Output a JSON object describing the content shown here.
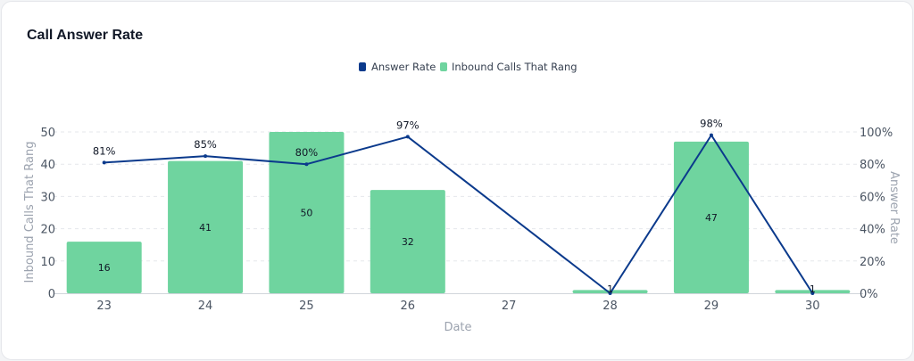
{
  "chart_data": {
    "type": "bar",
    "title": "Call Answer Rate",
    "xlabel": "Date",
    "ylabel": "Inbound Calls That Rang",
    "y2label": "Answer Rate",
    "categories": [
      "23",
      "24",
      "25",
      "26",
      "27",
      "28",
      "29",
      "30"
    ],
    "ylim": [
      0,
      50
    ],
    "y2lim": [
      0,
      100
    ],
    "yticks": [
      "0",
      "10",
      "20",
      "30",
      "40",
      "50"
    ],
    "y2ticks": [
      "0%",
      "20%",
      "40%",
      "60%",
      "80%",
      "100%"
    ],
    "legend_position": "top-center",
    "grid": true,
    "series": [
      {
        "name": "Answer Rate",
        "type": "line",
        "axis": "right",
        "color": "#0b3a8c",
        "values": [
          81,
          85,
          80,
          97,
          null,
          0,
          98,
          0
        ],
        "labels": [
          "81%",
          "85%",
          "80%",
          "97%",
          "",
          "",
          "98%",
          ""
        ]
      },
      {
        "name": "Inbound Calls That Rang",
        "type": "bar",
        "axis": "left",
        "color": "#6fd49f",
        "values": [
          16,
          41,
          50,
          32,
          0,
          1,
          47,
          1
        ],
        "labels": [
          "16",
          "41",
          "50",
          "32",
          "",
          "1",
          "47",
          "1"
        ]
      }
    ]
  }
}
